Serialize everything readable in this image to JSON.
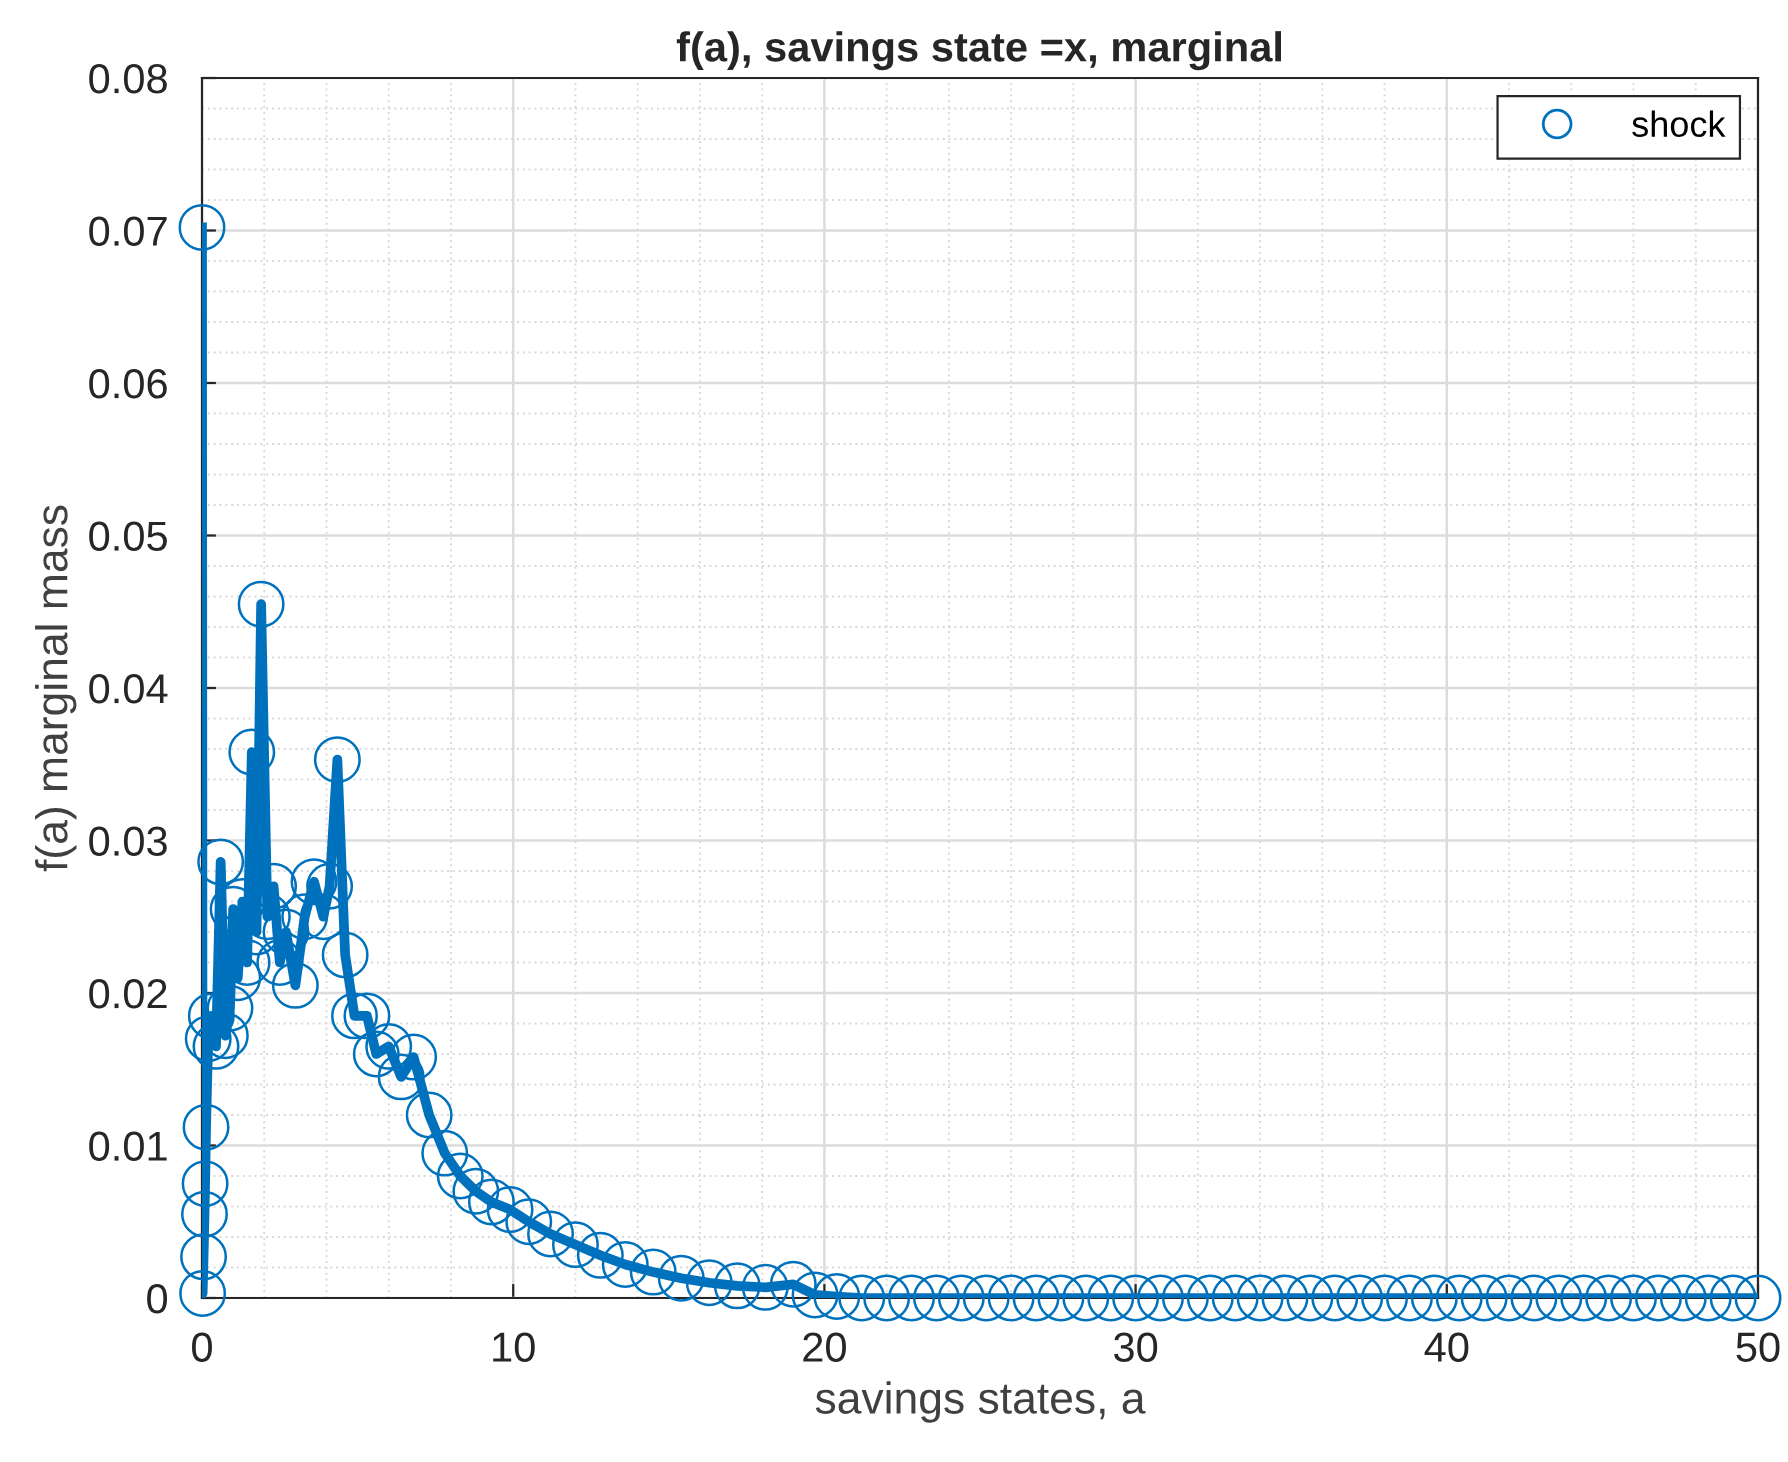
{
  "chart_data": {
    "type": "line",
    "title": "f(a), savings state =x, marginal",
    "xlabel": "savings states, a",
    "ylabel": "f(a) marginal mass",
    "xlim": [
      0,
      50
    ],
    "xticks": [
      0,
      10,
      20,
      30,
      40,
      50
    ],
    "ylim": [
      0,
      0.08
    ],
    "yticks": [
      0,
      0.01,
      0.02,
      0.03,
      0.04,
      0.05,
      0.06,
      0.07,
      0.08
    ],
    "grid": true,
    "legend": "top right",
    "marker": "circle",
    "line_style": "solid",
    "series": [
      {
        "name": "shock",
        "color": "#0072bd",
        "x": [
          0,
          0.02,
          0.05,
          0.08,
          0.1,
          0.13,
          0.2,
          0.3,
          0.45,
          0.6,
          0.75,
          0.9,
          1.0,
          1.15,
          1.3,
          1.45,
          1.6,
          1.75,
          1.9,
          2.1,
          2.3,
          2.5,
          2.7,
          3.0,
          3.3,
          3.6,
          3.9,
          4.1,
          4.35,
          4.6,
          4.9,
          5.3,
          5.6,
          6.0,
          6.4,
          6.8,
          7.3,
          7.8,
          8.3,
          8.8,
          9.3,
          9.9,
          10.5,
          11.2,
          12.0,
          12.8,
          13.6,
          14.5,
          15.4,
          16.3,
          17.2,
          18.1,
          19.0,
          19.7,
          20.4,
          21.2,
          22.0,
          22.8,
          23.6,
          24.4,
          25.2,
          26.0,
          26.8,
          27.6,
          28.4,
          29.2,
          30.0,
          30.8,
          31.6,
          32.4,
          33.2,
          34.0,
          34.8,
          35.6,
          36.4,
          37.2,
          38.0,
          38.8,
          39.6,
          40.4,
          41.2,
          42.0,
          42.8,
          43.6,
          44.4,
          45.2,
          46.0,
          46.8,
          47.6,
          48.4,
          49.2,
          50.0
        ],
        "values": [
          0.0702,
          0.0003,
          0.0027,
          0.0055,
          0.0075,
          0.0112,
          0.017,
          0.0185,
          0.0165,
          0.0286,
          0.0172,
          0.019,
          0.0255,
          0.021,
          0.026,
          0.022,
          0.0358,
          0.024,
          0.0455,
          0.025,
          0.027,
          0.022,
          0.024,
          0.0205,
          0.025,
          0.0273,
          0.025,
          0.027,
          0.0353,
          0.0225,
          0.0185,
          0.0185,
          0.016,
          0.0165,
          0.0145,
          0.0158,
          0.012,
          0.0095,
          0.008,
          0.007,
          0.0063,
          0.0058,
          0.005,
          0.0042,
          0.0035,
          0.0028,
          0.0022,
          0.0017,
          0.0013,
          0.001,
          0.0008,
          0.0007,
          0.0009,
          0.0002,
          0.0001,
          0,
          0,
          0,
          0,
          0,
          0,
          0,
          0,
          0,
          0,
          0,
          0,
          0,
          0,
          0,
          0,
          0,
          0,
          0,
          0,
          0,
          0,
          0,
          0,
          0,
          0,
          0,
          0,
          0,
          0,
          0,
          0,
          0,
          0,
          0,
          0,
          0
        ]
      }
    ]
  }
}
